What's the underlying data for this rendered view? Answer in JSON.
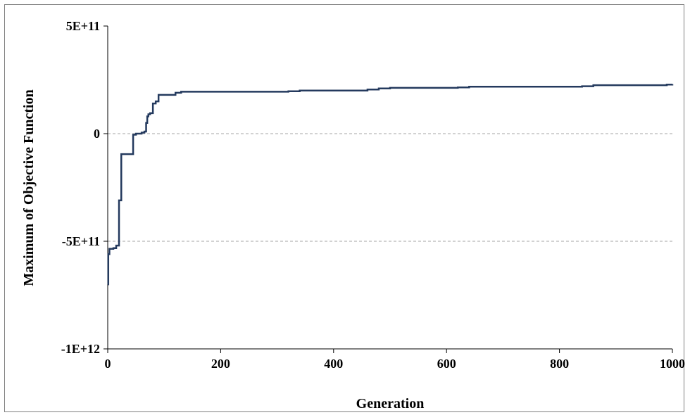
{
  "chart_data": {
    "type": "line",
    "title": "",
    "xlabel": "Generation",
    "ylabel": "Maximum of Objective Function",
    "xlim": [
      0,
      1000
    ],
    "ylim": [
      -1000000000000.0,
      500000000000.0
    ],
    "x_ticks": [
      0,
      200,
      400,
      600,
      800,
      1000
    ],
    "x_tick_labels": [
      "0",
      "200",
      "400",
      "600",
      "800",
      "1000"
    ],
    "y_ticks": [
      500000000000,
      0,
      -500000000000,
      -1000000000000
    ],
    "y_tick_labels": [
      "5E+11",
      "0",
      "-5E+11",
      "-1E+12"
    ],
    "grid": "horizontal dashed at 0 and -5E+11",
    "legend": "none",
    "line_color": "#243a5e",
    "series": [
      {
        "step": true,
        "x": [
          0,
          1,
          3,
          10,
          15,
          20,
          24,
          28,
          45,
          50,
          60,
          65,
          68,
          70,
          72,
          75,
          80,
          85,
          90,
          95,
          120,
          130,
          300,
          320,
          340,
          460,
          480,
          500,
          620,
          640,
          840,
          860,
          990,
          1000
        ],
        "y": [
          -700000000000,
          -560000000000,
          -535000000000,
          -532000000000,
          -520000000000,
          -310000000000,
          -95000000000,
          -95000000000,
          -5000000000,
          0,
          5000000000,
          10000000000,
          50000000000,
          80000000000,
          90000000000,
          95000000000,
          140000000000,
          150000000000,
          180000000000,
          180000000000,
          190000000000,
          195000000000,
          195000000000,
          197000000000,
          200000000000,
          205000000000,
          210000000000,
          213000000000,
          215000000000,
          218000000000,
          220000000000,
          225000000000,
          228000000000,
          230000000000
        ]
      }
    ]
  }
}
